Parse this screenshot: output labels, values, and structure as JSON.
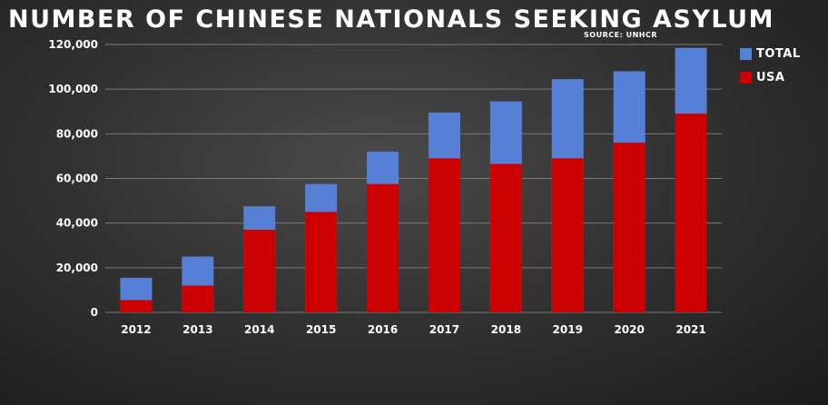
{
  "chart_data": {
    "type": "bar",
    "title": "NUMBER OF CHINESE NATIONALS SEEKING ASYLUM",
    "subtitle": "SOURCE: UNHCR",
    "categories": [
      "2012",
      "2013",
      "2014",
      "2015",
      "2016",
      "2017",
      "2018",
      "2019",
      "2020",
      "2021"
    ],
    "series": [
      {
        "name": "TOTAL",
        "color": "#5580d6",
        "values": [
          15500,
          25000,
          47500,
          57500,
          72000,
          89500,
          94500,
          104500,
          108000,
          118500
        ]
      },
      {
        "name": "USA",
        "color": "#cc0000",
        "values": [
          5500,
          12000,
          37000,
          45000,
          57500,
          69000,
          66500,
          69000,
          76000,
          89000
        ]
      }
    ],
    "yticks": [
      "0",
      "20,000",
      "40,000",
      "60,000",
      "80,000",
      "100,000",
      "120,000"
    ],
    "ylim": [
      0,
      120000
    ],
    "grid": true,
    "legend": "top-right"
  }
}
